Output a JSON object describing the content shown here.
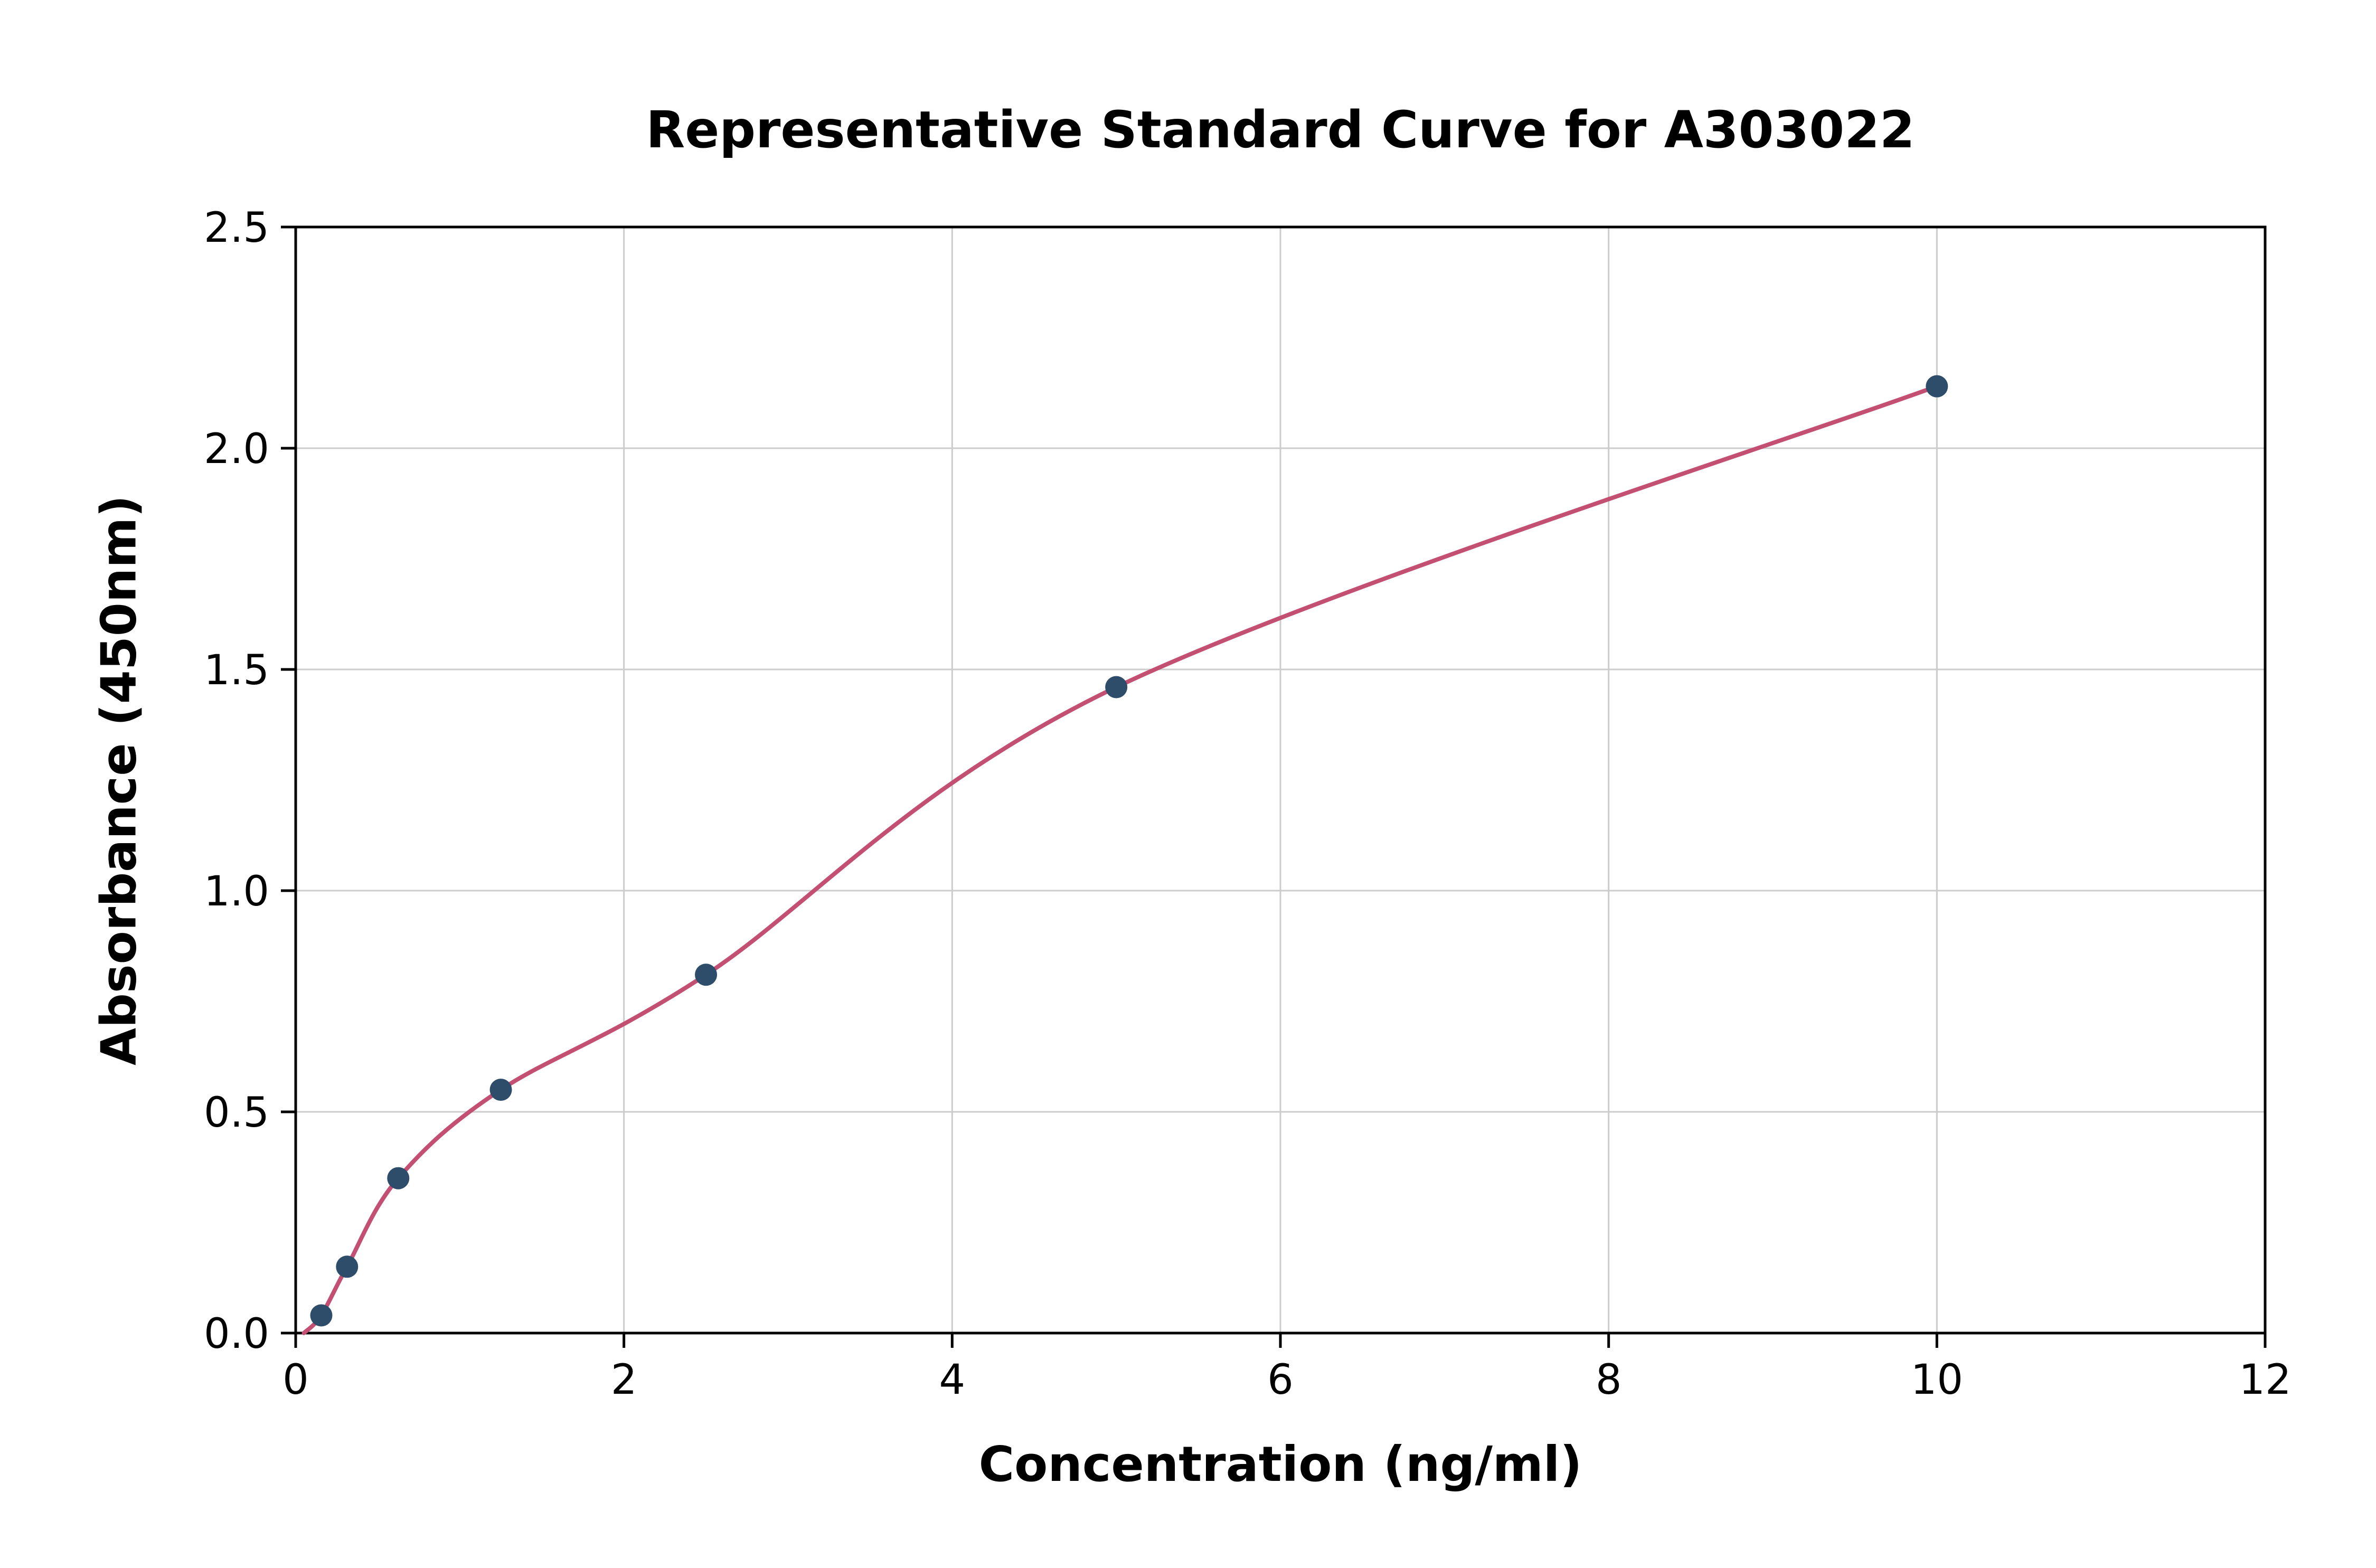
{
  "chart_data": {
    "type": "scatter",
    "title": "Representative Standard Curve for A303022",
    "xlabel": "Concentration (ng/ml)",
    "ylabel": "Absorbance (450nm)",
    "xlim": [
      0,
      12
    ],
    "ylim": [
      0.0,
      2.5
    ],
    "x_ticks": [
      0,
      2,
      4,
      6,
      8,
      10,
      12
    ],
    "x_tick_labels": [
      "0",
      "2",
      "4",
      "6",
      "8",
      "10",
      "12"
    ],
    "y_ticks": [
      0.0,
      0.5,
      1.0,
      1.5,
      2.0,
      2.5
    ],
    "y_tick_labels": [
      "0.0",
      "0.5",
      "1.0",
      "1.5",
      "2.0",
      "2.5"
    ],
    "grid": true,
    "legend": "none",
    "series": [
      {
        "name": "standard-points",
        "points": [
          {
            "x": 0.156,
            "y": 0.04
          },
          {
            "x": 0.313,
            "y": 0.15
          },
          {
            "x": 0.625,
            "y": 0.35
          },
          {
            "x": 1.25,
            "y": 0.55
          },
          {
            "x": 2.5,
            "y": 0.81
          },
          {
            "x": 5.0,
            "y": 1.46
          },
          {
            "x": 10.0,
            "y": 2.14
          }
        ]
      }
    ],
    "fit_curve": {
      "description": "smooth fitted curve through standard points",
      "start_point": {
        "x": 0.05,
        "y": 0.0
      },
      "end_point": {
        "x": 10.0,
        "y": 2.14
      }
    },
    "colors": {
      "point_color": "#2e4d6b",
      "curve_color": "#c34f72",
      "grid_color": "#cccccc",
      "axis_color": "#000000",
      "background": "#ffffff"
    }
  }
}
